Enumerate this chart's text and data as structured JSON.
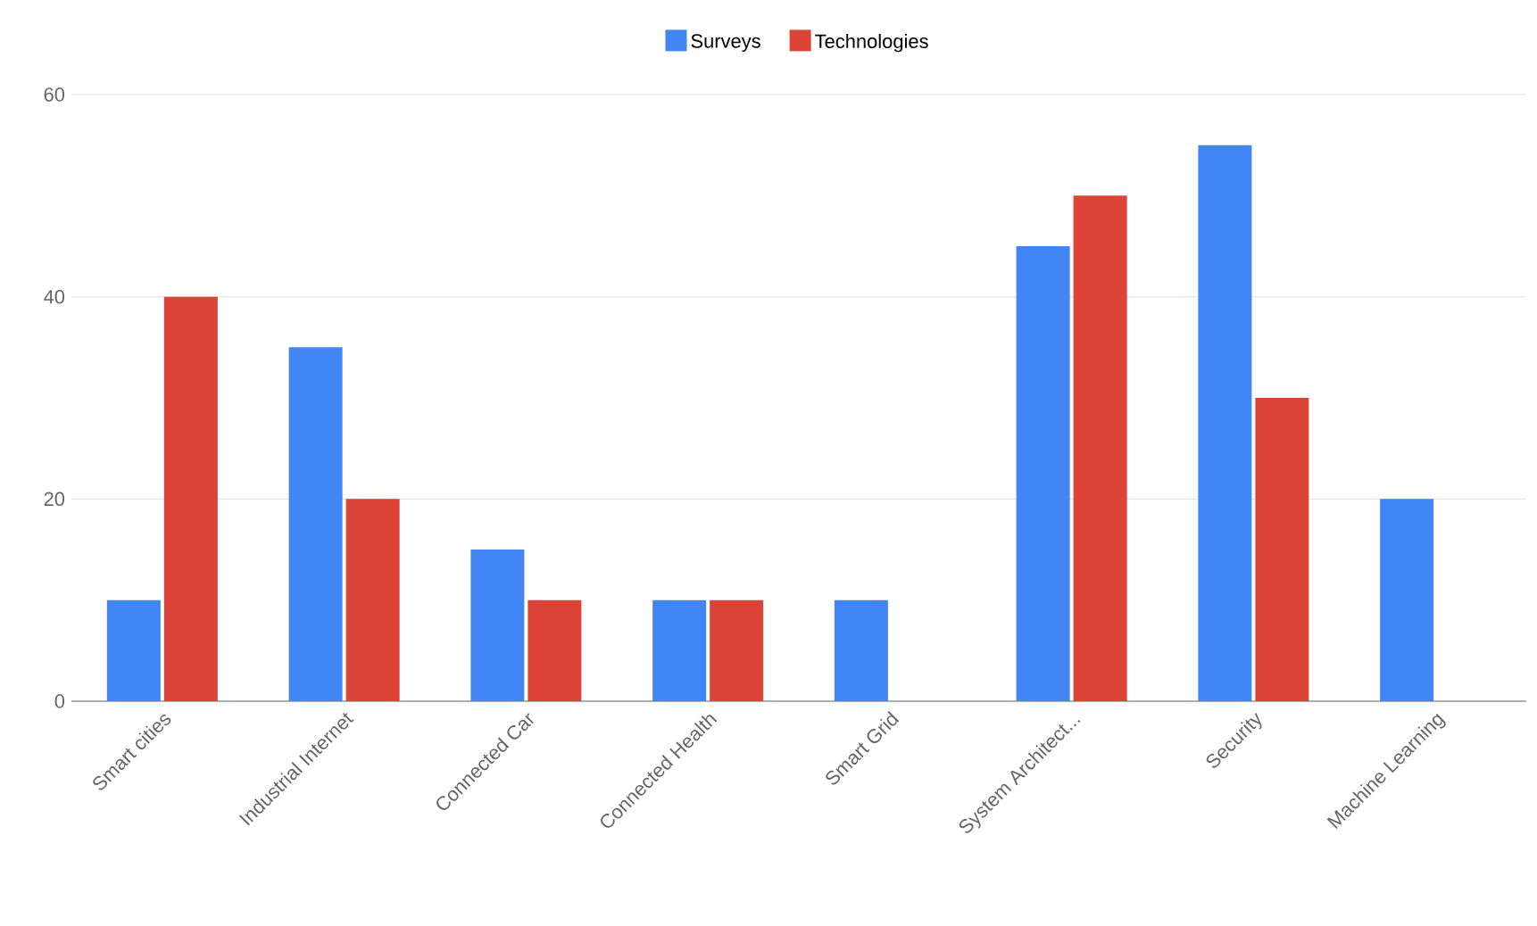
{
  "chart_data": {
    "type": "bar",
    "categories": [
      "Smart cities",
      "Industrial Internet",
      "Connected Car",
      "Connected Health",
      "Smart Grid",
      "System Architect...",
      "Security",
      "Machine Learning"
    ],
    "series": [
      {
        "name": "Surveys",
        "color": "#4285f4",
        "values": [
          10,
          35,
          15,
          10,
          10,
          45,
          55,
          20
        ]
      },
      {
        "name": "Technologies",
        "color": "#db4437",
        "values": [
          40,
          20,
          10,
          10,
          0,
          50,
          30,
          0
        ]
      }
    ],
    "ylim": [
      0,
      60
    ],
    "yticks": [
      0,
      20,
      40,
      60
    ],
    "grid": "y",
    "legend": "top"
  }
}
